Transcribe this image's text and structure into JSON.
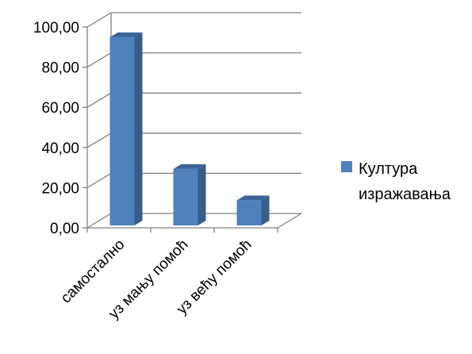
{
  "chart_data": {
    "type": "bar",
    "style": "3d-column",
    "categories": [
      "самостално",
      "уз мању помоћ",
      "уз већу помоћ"
    ],
    "series": [
      {
        "name": "Култура изражавања",
        "values": [
          93.75,
          28.13,
          12.5
        ]
      }
    ],
    "ylim": [
      0,
      100
    ],
    "yticks": [
      "0,00",
      "20,00",
      "40,00",
      "60,00",
      "80,00",
      "100,00"
    ],
    "legend_lines": [
      "Култура",
      "изражавања"
    ],
    "legend_position": "right",
    "grid": true,
    "colors": {
      "bar_front": "#4F81BD",
      "bar_side": "#385D8A",
      "bar_top": "#3A6596",
      "grid": "#808080"
    }
  }
}
